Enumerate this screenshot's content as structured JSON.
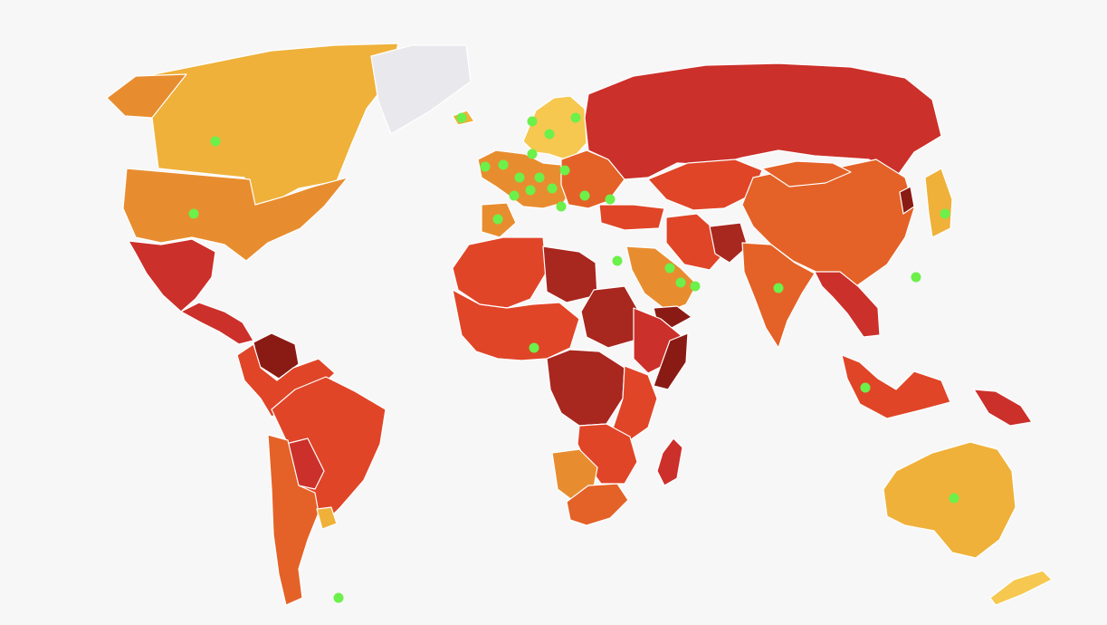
{
  "map": {
    "background": "#f7f7f7",
    "border_color": "#ffffff",
    "palette": {
      "very_light": "#f6c850",
      "light": "#efb13a",
      "medium_light": "#e88d2f",
      "medium": "#e46227",
      "high": "#e04528",
      "very_high": "#cc302a",
      "extreme": "#a8271f",
      "max": "#8a1b14",
      "no_data": "#e9e9ed"
    },
    "marker_color": "#6cf04a",
    "marker_icon": "dot-marker",
    "regions": [
      {
        "id": "canada",
        "shade": "light"
      },
      {
        "id": "alaska",
        "shade": "medium_light"
      },
      {
        "id": "usa",
        "shade": "medium_light"
      },
      {
        "id": "greenland",
        "shade": "no_data"
      },
      {
        "id": "mexico",
        "shade": "very_high"
      },
      {
        "id": "central-america",
        "shade": "very_high"
      },
      {
        "id": "venezuela",
        "shade": "max"
      },
      {
        "id": "south-america-north",
        "shade": "high"
      },
      {
        "id": "brazil",
        "shade": "high"
      },
      {
        "id": "paraguay",
        "shade": "very_high"
      },
      {
        "id": "argentina-chile",
        "shade": "medium"
      },
      {
        "id": "uruguay",
        "shade": "light"
      },
      {
        "id": "iceland",
        "shade": "light"
      },
      {
        "id": "scandinavia",
        "shade": "very_light"
      },
      {
        "id": "western-europe",
        "shade": "medium_light"
      },
      {
        "id": "eastern-europe",
        "shade": "medium"
      },
      {
        "id": "iberia",
        "shade": "medium_light"
      },
      {
        "id": "russia",
        "shade": "very_high"
      },
      {
        "id": "central-asia",
        "shade": "high"
      },
      {
        "id": "turkey",
        "shade": "high"
      },
      {
        "id": "iran",
        "shade": "high"
      },
      {
        "id": "afghanistan",
        "shade": "extreme"
      },
      {
        "id": "china",
        "shade": "medium"
      },
      {
        "id": "mongolia",
        "shade": "medium"
      },
      {
        "id": "india",
        "shade": "medium"
      },
      {
        "id": "southeast-asia",
        "shade": "very_high"
      },
      {
        "id": "north-korea",
        "shade": "max"
      },
      {
        "id": "japan",
        "shade": "light"
      },
      {
        "id": "indonesia",
        "shade": "high"
      },
      {
        "id": "papua-new-guinea",
        "shade": "very_high"
      },
      {
        "id": "saudi-arabia",
        "shade": "medium_light"
      },
      {
        "id": "yemen",
        "shade": "max"
      },
      {
        "id": "north-africa",
        "shade": "high"
      },
      {
        "id": "libya",
        "shade": "extreme"
      },
      {
        "id": "west-africa",
        "shade": "high"
      },
      {
        "id": "sudan",
        "shade": "extreme"
      },
      {
        "id": "horn-of-africa",
        "shade": "very_high"
      },
      {
        "id": "somalia",
        "shade": "max"
      },
      {
        "id": "central-africa",
        "shade": "extreme"
      },
      {
        "id": "east-africa",
        "shade": "high"
      },
      {
        "id": "southern-africa",
        "shade": "high"
      },
      {
        "id": "namibia-botswana",
        "shade": "medium_light"
      },
      {
        "id": "south-africa",
        "shade": "medium"
      },
      {
        "id": "madagascar",
        "shade": "very_high"
      },
      {
        "id": "australia",
        "shade": "light"
      },
      {
        "id": "new-zealand",
        "shade": "very_light"
      }
    ],
    "markers": [
      {
        "id": "canada"
      },
      {
        "id": "usa"
      },
      {
        "id": "iceland"
      },
      {
        "id": "norway"
      },
      {
        "id": "sweden"
      },
      {
        "id": "finland"
      },
      {
        "id": "uk"
      },
      {
        "id": "ireland"
      },
      {
        "id": "denmark"
      },
      {
        "id": "netherlands"
      },
      {
        "id": "germany"
      },
      {
        "id": "poland"
      },
      {
        "id": "france"
      },
      {
        "id": "switzerland"
      },
      {
        "id": "austria"
      },
      {
        "id": "spain"
      },
      {
        "id": "italy"
      },
      {
        "id": "romania"
      },
      {
        "id": "turkey"
      },
      {
        "id": "egypt"
      },
      {
        "id": "nigeria"
      },
      {
        "id": "qatar"
      },
      {
        "id": "uae"
      },
      {
        "id": "oman"
      },
      {
        "id": "india"
      },
      {
        "id": "taiwan"
      },
      {
        "id": "japan"
      },
      {
        "id": "singapore"
      },
      {
        "id": "australia"
      },
      {
        "id": "falklands"
      }
    ]
  }
}
